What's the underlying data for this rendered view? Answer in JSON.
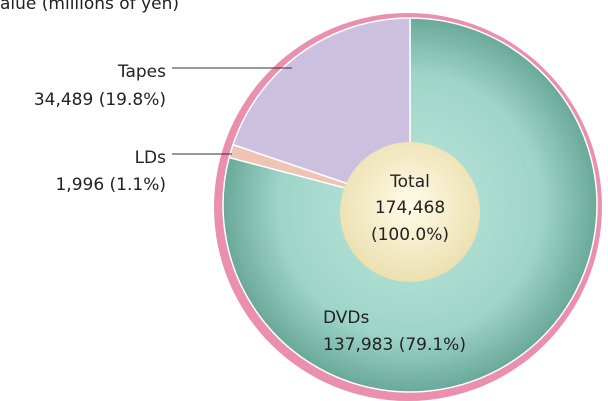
{
  "chart_data": {
    "type": "pie",
    "title": "alue (millions of yen)",
    "categories": [
      "DVDs",
      "LDs",
      "Tapes"
    ],
    "values": [
      137983,
      1996,
      34489
    ],
    "value_labels": [
      "137,983 (79.1%)",
      "1,996 (1.1%)",
      "34,489 (19.8%)"
    ],
    "colors": [
      "#8ccbbd",
      "#f0c4b4",
      "#cbc1de"
    ],
    "center_label": "Total",
    "center_value_labels": [
      "174,468",
      "(100.0%)"
    ]
  }
}
